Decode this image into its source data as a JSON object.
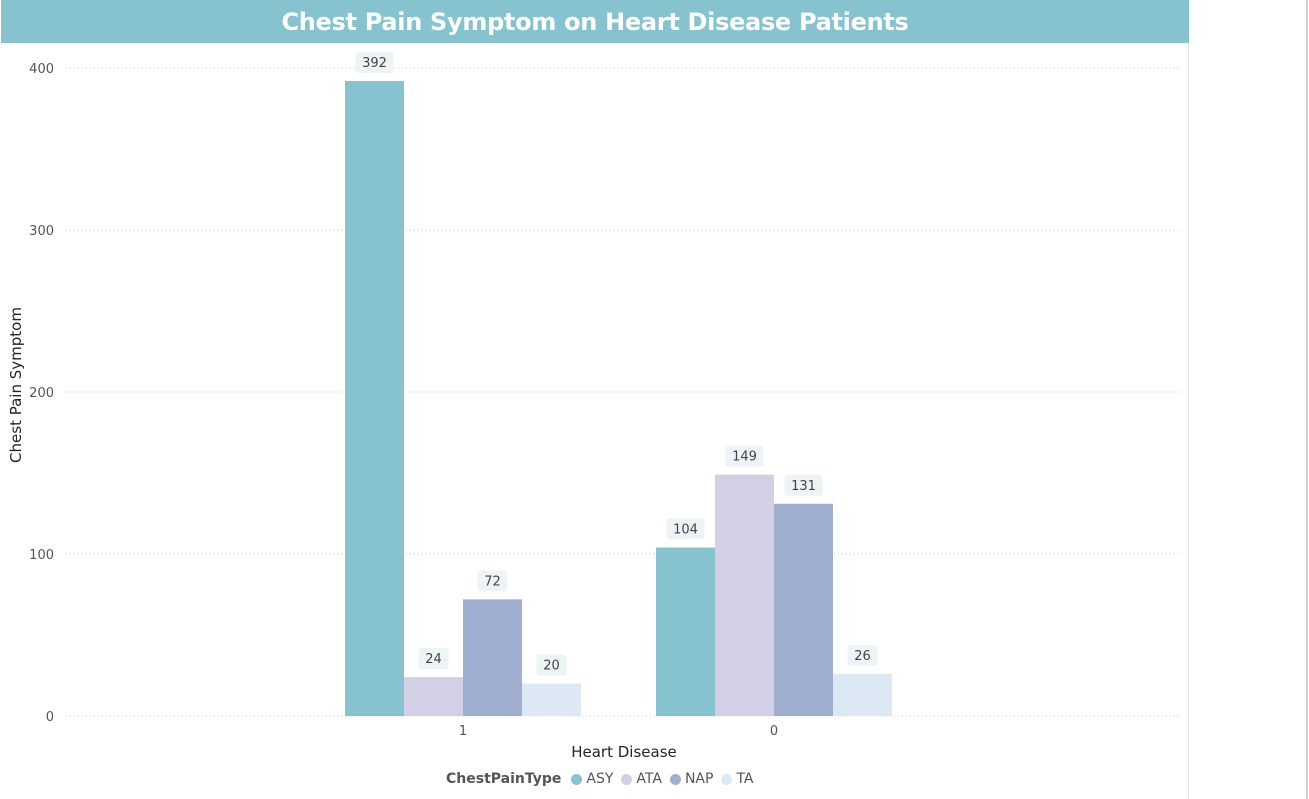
{
  "title": "Chest Pain Symptom on Heart Disease Patients",
  "chart_data": {
    "type": "bar",
    "title": "Chest Pain Symptom on Heart Disease Patients",
    "xlabel": "Heart Disease",
    "ylabel": "Chest Pain Symptom",
    "categories": [
      "1",
      "0"
    ],
    "ylim": [
      0,
      400
    ],
    "yticks": [
      0,
      100,
      200,
      300,
      400
    ],
    "grid": true,
    "legend_position": "bottom-center",
    "legend_title": "ChestPainType",
    "series": [
      {
        "name": "ASY",
        "values": [
          392,
          104
        ],
        "color": "#87c3cf"
      },
      {
        "name": "ATA",
        "values": [
          24,
          149
        ],
        "color": "#d2d0e4"
      },
      {
        "name": "NAP",
        "values": [
          72,
          131
        ],
        "color": "#a0aecf"
      },
      {
        "name": "TA",
        "values": [
          20,
          26
        ],
        "color": "#dce9f5"
      }
    ]
  }
}
